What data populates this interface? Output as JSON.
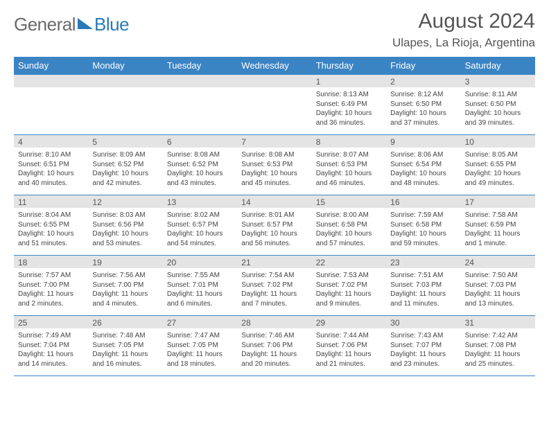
{
  "logo": {
    "text1": "General",
    "text2": "Blue"
  },
  "title": "August 2024",
  "location": "Ulapes, La Rioja, Argentina",
  "colors": {
    "header_blue": "#3b84c4",
    "logo_blue": "#2a7ab8",
    "logo_gray": "#6a6a6a",
    "daynum_bg": "#e4e4e4",
    "text": "#444444"
  },
  "weekdays": [
    "Sunday",
    "Monday",
    "Tuesday",
    "Wednesday",
    "Thursday",
    "Friday",
    "Saturday"
  ],
  "weeks": [
    [
      null,
      null,
      null,
      null,
      {
        "n": "1",
        "sr": "Sunrise: 8:13 AM",
        "ss": "Sunset: 6:49 PM",
        "dl": "Daylight: 10 hours and 36 minutes."
      },
      {
        "n": "2",
        "sr": "Sunrise: 8:12 AM",
        "ss": "Sunset: 6:50 PM",
        "dl": "Daylight: 10 hours and 37 minutes."
      },
      {
        "n": "3",
        "sr": "Sunrise: 8:11 AM",
        "ss": "Sunset: 6:50 PM",
        "dl": "Daylight: 10 hours and 39 minutes."
      }
    ],
    [
      {
        "n": "4",
        "sr": "Sunrise: 8:10 AM",
        "ss": "Sunset: 6:51 PM",
        "dl": "Daylight: 10 hours and 40 minutes."
      },
      {
        "n": "5",
        "sr": "Sunrise: 8:09 AM",
        "ss": "Sunset: 6:52 PM",
        "dl": "Daylight: 10 hours and 42 minutes."
      },
      {
        "n": "6",
        "sr": "Sunrise: 8:08 AM",
        "ss": "Sunset: 6:52 PM",
        "dl": "Daylight: 10 hours and 43 minutes."
      },
      {
        "n": "7",
        "sr": "Sunrise: 8:08 AM",
        "ss": "Sunset: 6:53 PM",
        "dl": "Daylight: 10 hours and 45 minutes."
      },
      {
        "n": "8",
        "sr": "Sunrise: 8:07 AM",
        "ss": "Sunset: 6:53 PM",
        "dl": "Daylight: 10 hours and 46 minutes."
      },
      {
        "n": "9",
        "sr": "Sunrise: 8:06 AM",
        "ss": "Sunset: 6:54 PM",
        "dl": "Daylight: 10 hours and 48 minutes."
      },
      {
        "n": "10",
        "sr": "Sunrise: 8:05 AM",
        "ss": "Sunset: 6:55 PM",
        "dl": "Daylight: 10 hours and 49 minutes."
      }
    ],
    [
      {
        "n": "11",
        "sr": "Sunrise: 8:04 AM",
        "ss": "Sunset: 6:55 PM",
        "dl": "Daylight: 10 hours and 51 minutes."
      },
      {
        "n": "12",
        "sr": "Sunrise: 8:03 AM",
        "ss": "Sunset: 6:56 PM",
        "dl": "Daylight: 10 hours and 53 minutes."
      },
      {
        "n": "13",
        "sr": "Sunrise: 8:02 AM",
        "ss": "Sunset: 6:57 PM",
        "dl": "Daylight: 10 hours and 54 minutes."
      },
      {
        "n": "14",
        "sr": "Sunrise: 8:01 AM",
        "ss": "Sunset: 6:57 PM",
        "dl": "Daylight: 10 hours and 56 minutes."
      },
      {
        "n": "15",
        "sr": "Sunrise: 8:00 AM",
        "ss": "Sunset: 6:58 PM",
        "dl": "Daylight: 10 hours and 57 minutes."
      },
      {
        "n": "16",
        "sr": "Sunrise: 7:59 AM",
        "ss": "Sunset: 6:58 PM",
        "dl": "Daylight: 10 hours and 59 minutes."
      },
      {
        "n": "17",
        "sr": "Sunrise: 7:58 AM",
        "ss": "Sunset: 6:59 PM",
        "dl": "Daylight: 11 hours and 1 minute."
      }
    ],
    [
      {
        "n": "18",
        "sr": "Sunrise: 7:57 AM",
        "ss": "Sunset: 7:00 PM",
        "dl": "Daylight: 11 hours and 2 minutes."
      },
      {
        "n": "19",
        "sr": "Sunrise: 7:56 AM",
        "ss": "Sunset: 7:00 PM",
        "dl": "Daylight: 11 hours and 4 minutes."
      },
      {
        "n": "20",
        "sr": "Sunrise: 7:55 AM",
        "ss": "Sunset: 7:01 PM",
        "dl": "Daylight: 11 hours and 6 minutes."
      },
      {
        "n": "21",
        "sr": "Sunrise: 7:54 AM",
        "ss": "Sunset: 7:02 PM",
        "dl": "Daylight: 11 hours and 7 minutes."
      },
      {
        "n": "22",
        "sr": "Sunrise: 7:53 AM",
        "ss": "Sunset: 7:02 PM",
        "dl": "Daylight: 11 hours and 9 minutes."
      },
      {
        "n": "23",
        "sr": "Sunrise: 7:51 AM",
        "ss": "Sunset: 7:03 PM",
        "dl": "Daylight: 11 hours and 11 minutes."
      },
      {
        "n": "24",
        "sr": "Sunrise: 7:50 AM",
        "ss": "Sunset: 7:03 PM",
        "dl": "Daylight: 11 hours and 13 minutes."
      }
    ],
    [
      {
        "n": "25",
        "sr": "Sunrise: 7:49 AM",
        "ss": "Sunset: 7:04 PM",
        "dl": "Daylight: 11 hours and 14 minutes."
      },
      {
        "n": "26",
        "sr": "Sunrise: 7:48 AM",
        "ss": "Sunset: 7:05 PM",
        "dl": "Daylight: 11 hours and 16 minutes."
      },
      {
        "n": "27",
        "sr": "Sunrise: 7:47 AM",
        "ss": "Sunset: 7:05 PM",
        "dl": "Daylight: 11 hours and 18 minutes."
      },
      {
        "n": "28",
        "sr": "Sunrise: 7:46 AM",
        "ss": "Sunset: 7:06 PM",
        "dl": "Daylight: 11 hours and 20 minutes."
      },
      {
        "n": "29",
        "sr": "Sunrise: 7:44 AM",
        "ss": "Sunset: 7:06 PM",
        "dl": "Daylight: 11 hours and 21 minutes."
      },
      {
        "n": "30",
        "sr": "Sunrise: 7:43 AM",
        "ss": "Sunset: 7:07 PM",
        "dl": "Daylight: 11 hours and 23 minutes."
      },
      {
        "n": "31",
        "sr": "Sunrise: 7:42 AM",
        "ss": "Sunset: 7:08 PM",
        "dl": "Daylight: 11 hours and 25 minutes."
      }
    ]
  ]
}
